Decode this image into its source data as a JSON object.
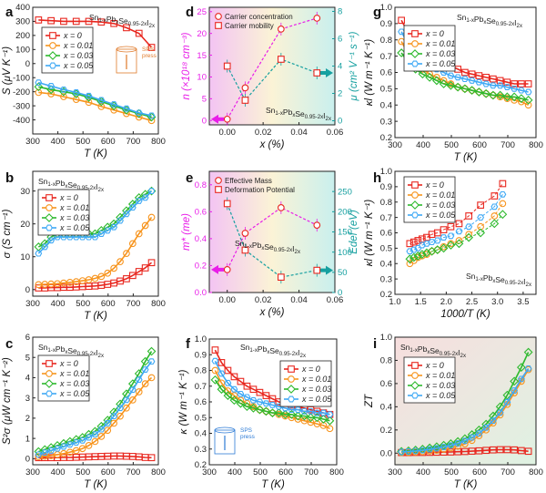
{
  "colors": {
    "x0": "#e8271f",
    "x001": "#f7941d",
    "x003": "#2db92d",
    "x005": "#3fa9f5",
    "blue": "#2d7bd6",
    "magenta": "#e81ee8",
    "teal": "#16a0a0"
  },
  "legend_labels": [
    "x = 0",
    "x = 0.01",
    "x = 0.03",
    "x = 0.05"
  ],
  "sps_label": "SPS press",
  "chart_data": [
    {
      "id": "a",
      "panel": "a",
      "type": "line",
      "formula": "Sn1-xPbxSe0.95-2xI2x",
      "xlabel": "T (K)",
      "ylabel": "S (μV K⁻¹)",
      "xlim": [
        300,
        800
      ],
      "ylim": [
        -500,
        400
      ],
      "xticks": [
        300,
        400,
        500,
        600,
        700,
        800
      ],
      "yticks": [
        -400,
        -300,
        -200,
        -100,
        0,
        100,
        200,
        300,
        400
      ],
      "x": [
        323,
        373,
        423,
        473,
        523,
        573,
        623,
        673,
        723,
        773
      ],
      "series": [
        {
          "name": "x = 0",
          "values": [
            310,
            305,
            300,
            300,
            300,
            295,
            285,
            255,
            215,
            115
          ]
        },
        {
          "name": "x = 0.01",
          "values": [
            -205,
            -215,
            -235,
            -255,
            -275,
            -305,
            -330,
            -355,
            -380,
            -405
          ]
        },
        {
          "name": "x = 0.03",
          "values": [
            -165,
            -185,
            -200,
            -215,
            -240,
            -270,
            -300,
            -330,
            -355,
            -380
          ]
        },
        {
          "name": "x = 0.05",
          "values": [
            -135,
            -160,
            -185,
            -205,
            -230,
            -260,
            -290,
            -320,
            -350,
            -370
          ]
        }
      ]
    },
    {
      "id": "b",
      "panel": "b",
      "type": "line",
      "formula": "Sn1-xPbxSe0.95-2xI2x",
      "xlabel": "T (K)",
      "ylabel": "σ (S cm⁻¹)",
      "xlim": [
        300,
        800
      ],
      "ylim": [
        -2,
        36
      ],
      "xticks": [
        300,
        400,
        500,
        600,
        700,
        800
      ],
      "yticks": [
        0,
        10,
        20,
        30
      ],
      "x": [
        323,
        348,
        373,
        398,
        423,
        448,
        473,
        498,
        523,
        548,
        573,
        598,
        623,
        648,
        673,
        698,
        723,
        748,
        773
      ],
      "series": [
        {
          "name": "x = 0",
          "values": [
            0.5,
            0.5,
            0.6,
            0.6,
            0.7,
            0.7,
            0.8,
            0.9,
            1.0,
            1.1,
            1.3,
            1.6,
            2.0,
            2.6,
            3.3,
            4.3,
            5.5,
            6.6,
            8.2
          ]
        },
        {
          "name": "x = 0.01",
          "values": [
            1.5,
            1.6,
            1.7,
            1.8,
            2.0,
            2.2,
            2.4,
            2.7,
            3.0,
            3.4,
            4.0,
            5.0,
            6.5,
            8.5,
            11,
            14,
            17,
            19.5,
            22
          ]
        },
        {
          "name": "x = 0.03",
          "values": [
            13,
            14,
            16,
            17,
            17,
            17,
            17,
            17,
            17,
            17,
            18,
            19,
            20,
            22,
            24,
            26,
            28,
            29,
            30
          ]
        },
        {
          "name": "x = 0.05",
          "values": [
            11,
            13,
            15,
            16,
            16,
            16,
            16,
            16,
            16,
            16,
            17,
            18,
            19,
            21,
            23,
            25,
            27,
            28,
            30
          ]
        }
      ]
    },
    {
      "id": "c",
      "panel": "c",
      "type": "line",
      "formula": "Sn1-xPbxSe0.95-2xI2x",
      "xlabel": "T (K)",
      "ylabel": "S²σ (μW cm⁻¹ K⁻²)",
      "xlim": [
        300,
        800
      ],
      "ylim": [
        -0.3,
        6
      ],
      "xticks": [
        300,
        400,
        500,
        600,
        700,
        800
      ],
      "yticks": [
        0,
        1,
        2,
        3,
        4,
        5,
        6
      ],
      "x": [
        323,
        348,
        373,
        398,
        423,
        448,
        473,
        498,
        523,
        548,
        573,
        598,
        623,
        648,
        673,
        698,
        723,
        748,
        773
      ],
      "series": [
        {
          "name": "x = 0",
          "values": [
            0.05,
            0.05,
            0.05,
            0.05,
            0.06,
            0.06,
            0.07,
            0.08,
            0.09,
            0.1,
            0.11,
            0.12,
            0.13,
            0.13,
            0.12,
            0.11,
            0.09,
            0.06,
            0.05
          ]
        },
        {
          "name": "x = 0.01",
          "values": [
            0.1,
            0.12,
            0.15,
            0.2,
            0.25,
            0.32,
            0.4,
            0.5,
            0.65,
            0.85,
            1.1,
            1.4,
            1.75,
            2.1,
            2.5,
            2.9,
            3.3,
            3.7,
            4.0
          ]
        },
        {
          "name": "x = 0.03",
          "values": [
            0.35,
            0.45,
            0.55,
            0.65,
            0.75,
            0.85,
            0.95,
            1.05,
            1.2,
            1.35,
            1.6,
            1.9,
            2.3,
            2.7,
            3.2,
            3.7,
            4.2,
            4.8,
            5.3
          ]
        },
        {
          "name": "x = 0.05",
          "values": [
            0.2,
            0.3,
            0.4,
            0.5,
            0.6,
            0.7,
            0.8,
            0.9,
            1.05,
            1.2,
            1.45,
            1.75,
            2.1,
            2.5,
            2.9,
            3.4,
            3.9,
            4.4,
            4.8
          ]
        }
      ]
    },
    {
      "id": "d",
      "panel": "d",
      "type": "scatter",
      "formula": "Sn1-xPbxSe0.95-2xI2x",
      "xlabel": "x (%)",
      "ylabel": "n (×10¹⁸ cm⁻³)",
      "y2label": "μ (cm² V⁻¹ s⁻¹)",
      "xlim": [
        -0.01,
        0.06
      ],
      "ylim": [
        -1,
        26
      ],
      "y2lim": [
        -0.3,
        8.3
      ],
      "xticks": [
        0.0,
        0.02,
        0.04,
        0.06
      ],
      "xtick_labels": [
        "0.00",
        "0.02",
        "0.04",
        "0.06"
      ],
      "yticks": [
        0,
        5,
        10,
        15,
        20,
        25
      ],
      "y2ticks": [
        0,
        2,
        4,
        6,
        8
      ],
      "legend": [
        "Carrier concentration",
        "Carrier mobility"
      ],
      "x": [
        0,
        0.01,
        0.03,
        0.05
      ],
      "series": [
        {
          "name": "Carrier concentration",
          "axis": "left",
          "values": [
            0.3,
            7.5,
            21,
            23.5
          ]
        },
        {
          "name": "Carrier mobility",
          "axis": "right",
          "values": [
            4.0,
            1.5,
            4.5,
            3.5
          ]
        }
      ]
    },
    {
      "id": "e",
      "panel": "e",
      "type": "scatter",
      "formula": "Sn1-xPbxSe0.95-2xI2x",
      "xlabel": "x (%)",
      "ylabel": "m* (me)",
      "y2label": "Edef (eV)",
      "xlim": [
        -0.01,
        0.06
      ],
      "ylim": [
        0,
        0.9
      ],
      "y2lim": [
        0,
        300
      ],
      "xticks": [
        0.0,
        0.02,
        0.04,
        0.06
      ],
      "xtick_labels": [
        "0.00",
        "0.02",
        "0.04",
        "0.06"
      ],
      "yticks": [
        0,
        0.2,
        0.4,
        0.6,
        0.8
      ],
      "y2ticks": [
        0,
        50,
        100,
        150,
        200,
        250
      ],
      "legend": [
        "Effective Mass",
        "Deformation Potential"
      ],
      "x": [
        0,
        0.01,
        0.03,
        0.05
      ],
      "series": [
        {
          "name": "Effective Mass",
          "axis": "left",
          "values": [
            0.17,
            0.44,
            0.63,
            0.5
          ]
        },
        {
          "name": "Deformation Potential",
          "axis": "right",
          "values": [
            220,
            105,
            38,
            55
          ]
        }
      ]
    },
    {
      "id": "f",
      "panel": "f",
      "type": "line",
      "formula": "Sn1-xPbxSe0.95-2xI2x",
      "xlabel": "T (K)",
      "ylabel": "κ (W m⁻¹ K⁻¹)",
      "xlim": [
        300,
        800
      ],
      "ylim": [
        0.2,
        1.0
      ],
      "xticks": [
        300,
        400,
        500,
        600,
        700,
        800
      ],
      "yticks": [
        0.2,
        0.3,
        0.4,
        0.5,
        0.6,
        0.7,
        0.8,
        0.9,
        1.0
      ],
      "x": [
        323,
        348,
        373,
        398,
        423,
        448,
        473,
        498,
        523,
        548,
        573,
        598,
        623,
        648,
        673,
        698,
        723,
        748,
        773
      ],
      "series": [
        {
          "name": "x = 0",
          "values": [
            0.93,
            0.85,
            0.8,
            0.76,
            0.73,
            0.7,
            0.68,
            0.66,
            0.64,
            0.62,
            0.6,
            0.59,
            0.58,
            0.57,
            0.56,
            0.55,
            0.54,
            0.53,
            0.52
          ]
        },
        {
          "name": "x = 0.01",
          "values": [
            0.8,
            0.72,
            0.67,
            0.64,
            0.61,
            0.59,
            0.57,
            0.55,
            0.54,
            0.53,
            0.52,
            0.51,
            0.5,
            0.49,
            0.48,
            0.47,
            0.46,
            0.45,
            0.43
          ]
        },
        {
          "name": "x = 0.03",
          "values": [
            0.74,
            0.68,
            0.64,
            0.61,
            0.59,
            0.57,
            0.56,
            0.55,
            0.54,
            0.53,
            0.53,
            0.52,
            0.52,
            0.51,
            0.51,
            0.5,
            0.5,
            0.49,
            0.48
          ]
        },
        {
          "name": "x = 0.05",
          "values": [
            0.86,
            0.78,
            0.72,
            0.68,
            0.65,
            0.63,
            0.61,
            0.6,
            0.59,
            0.58,
            0.57,
            0.56,
            0.55,
            0.55,
            0.54,
            0.54,
            0.53,
            0.53,
            0.52
          ]
        }
      ]
    },
    {
      "id": "g",
      "panel": "g",
      "type": "line",
      "formula": "Sn1-xPbxSe0.95-2xI2x",
      "xlabel": "T (K)",
      "ylabel": "κl (W m⁻¹ K⁻¹)",
      "xlim": [
        300,
        800
      ],
      "ylim": [
        0.2,
        1.0
      ],
      "xticks": [
        300,
        400,
        500,
        600,
        700,
        800
      ],
      "yticks": [
        0.2,
        0.3,
        0.4,
        0.5,
        0.6,
        0.7,
        0.8,
        0.9,
        1.0
      ],
      "x": [
        323,
        348,
        373,
        398,
        423,
        448,
        473,
        498,
        523,
        548,
        573,
        598,
        623,
        648,
        673,
        698,
        723,
        748,
        773
      ],
      "series": [
        {
          "name": "x = 0",
          "values": [
            0.92,
            0.84,
            0.78,
            0.74,
            0.71,
            0.68,
            0.66,
            0.64,
            0.62,
            0.6,
            0.59,
            0.58,
            0.57,
            0.56,
            0.55,
            0.54,
            0.53,
            0.53,
            0.53
          ]
        },
        {
          "name": "x = 0.01",
          "values": [
            0.79,
            0.71,
            0.66,
            0.62,
            0.59,
            0.57,
            0.55,
            0.53,
            0.51,
            0.5,
            0.49,
            0.48,
            0.47,
            0.46,
            0.45,
            0.44,
            0.43,
            0.42,
            0.4
          ]
        },
        {
          "name": "x = 0.03",
          "values": [
            0.72,
            0.66,
            0.62,
            0.59,
            0.57,
            0.55,
            0.53,
            0.52,
            0.51,
            0.5,
            0.49,
            0.48,
            0.47,
            0.46,
            0.46,
            0.45,
            0.45,
            0.44,
            0.43
          ]
        },
        {
          "name": "x = 0.05",
          "values": [
            0.85,
            0.77,
            0.71,
            0.67,
            0.64,
            0.62,
            0.6,
            0.58,
            0.57,
            0.56,
            0.55,
            0.54,
            0.53,
            0.52,
            0.52,
            0.51,
            0.5,
            0.49,
            0.48
          ]
        }
      ]
    },
    {
      "id": "h",
      "panel": "h",
      "type": "scatter",
      "formula": "Sn1-xPbxSe0.95-2xI2x",
      "xlabel": "1000/T (K)",
      "ylabel": "κl (W m⁻¹ K⁻¹)",
      "xlim": [
        1.0,
        3.75
      ],
      "ylim": [
        0.2,
        1.0
      ],
      "xticks": [
        1.0,
        1.5,
        2.0,
        2.5,
        3.0,
        3.5
      ],
      "xtick_labels": [
        "1.0",
        "1.5",
        "2.0",
        "2.5",
        "3.0",
        "3.5"
      ],
      "yticks": [
        0.2,
        0.3,
        0.4,
        0.5,
        0.6,
        0.7,
        0.8,
        0.9,
        1.0
      ],
      "x": [
        1.29,
        1.37,
        1.45,
        1.53,
        1.62,
        1.72,
        1.83,
        1.95,
        2.09,
        2.25,
        2.44,
        2.67,
        2.94,
        3.1
      ],
      "series": [
        {
          "name": "x = 0",
          "values": [
            0.53,
            0.54,
            0.55,
            0.56,
            0.57,
            0.59,
            0.6,
            0.62,
            0.64,
            0.66,
            0.71,
            0.78,
            0.84,
            0.92
          ]
        },
        {
          "name": "x = 0.01",
          "values": [
            0.4,
            0.42,
            0.44,
            0.45,
            0.46,
            0.48,
            0.49,
            0.51,
            0.53,
            0.55,
            0.59,
            0.64,
            0.71,
            0.79
          ]
        },
        {
          "name": "x = 0.03",
          "values": [
            0.43,
            0.44,
            0.45,
            0.46,
            0.47,
            0.48,
            0.49,
            0.5,
            0.52,
            0.53,
            0.57,
            0.6,
            0.66,
            0.72
          ]
        },
        {
          "name": "x = 0.05",
          "values": [
            0.48,
            0.49,
            0.5,
            0.52,
            0.53,
            0.54,
            0.55,
            0.57,
            0.58,
            0.61,
            0.64,
            0.7,
            0.77,
            0.85
          ]
        }
      ]
    },
    {
      "id": "i",
      "panel": "i",
      "type": "line",
      "formula": "Sn1-xPbxSe0.95-2xI2x",
      "xlabel": "T (K)",
      "ylabel": "ZT",
      "xlim": [
        300,
        800
      ],
      "ylim": [
        -0.1,
        1.0
      ],
      "xticks": [
        300,
        400,
        500,
        600,
        700,
        800
      ],
      "yticks": [
        0.0,
        0.2,
        0.4,
        0.6,
        0.8,
        1.0
      ],
      "x": [
        323,
        348,
        373,
        398,
        423,
        448,
        473,
        498,
        523,
        548,
        573,
        598,
        623,
        648,
        673,
        698,
        723,
        748,
        773
      ],
      "series": [
        {
          "name": "x = 0",
          "values": [
            0.005,
            0.005,
            0.006,
            0.006,
            0.007,
            0.008,
            0.009,
            0.01,
            0.012,
            0.014,
            0.017,
            0.02,
            0.024,
            0.028,
            0.03,
            0.03,
            0.028,
            0.022,
            0.016
          ]
        },
        {
          "name": "x = 0.01",
          "values": [
            0.005,
            0.007,
            0.01,
            0.013,
            0.018,
            0.025,
            0.034,
            0.045,
            0.06,
            0.08,
            0.11,
            0.15,
            0.2,
            0.26,
            0.33,
            0.42,
            0.52,
            0.62,
            0.72
          ]
        },
        {
          "name": "x = 0.03",
          "values": [
            0.015,
            0.02,
            0.027,
            0.035,
            0.045,
            0.055,
            0.068,
            0.082,
            0.1,
            0.125,
            0.16,
            0.2,
            0.25,
            0.32,
            0.4,
            0.5,
            0.62,
            0.74,
            0.87
          ]
        },
        {
          "name": "x = 0.05",
          "values": [
            0.01,
            0.014,
            0.019,
            0.025,
            0.033,
            0.042,
            0.053,
            0.067,
            0.084,
            0.106,
            0.135,
            0.17,
            0.22,
            0.28,
            0.35,
            0.44,
            0.54,
            0.64,
            0.73
          ]
        }
      ]
    }
  ]
}
